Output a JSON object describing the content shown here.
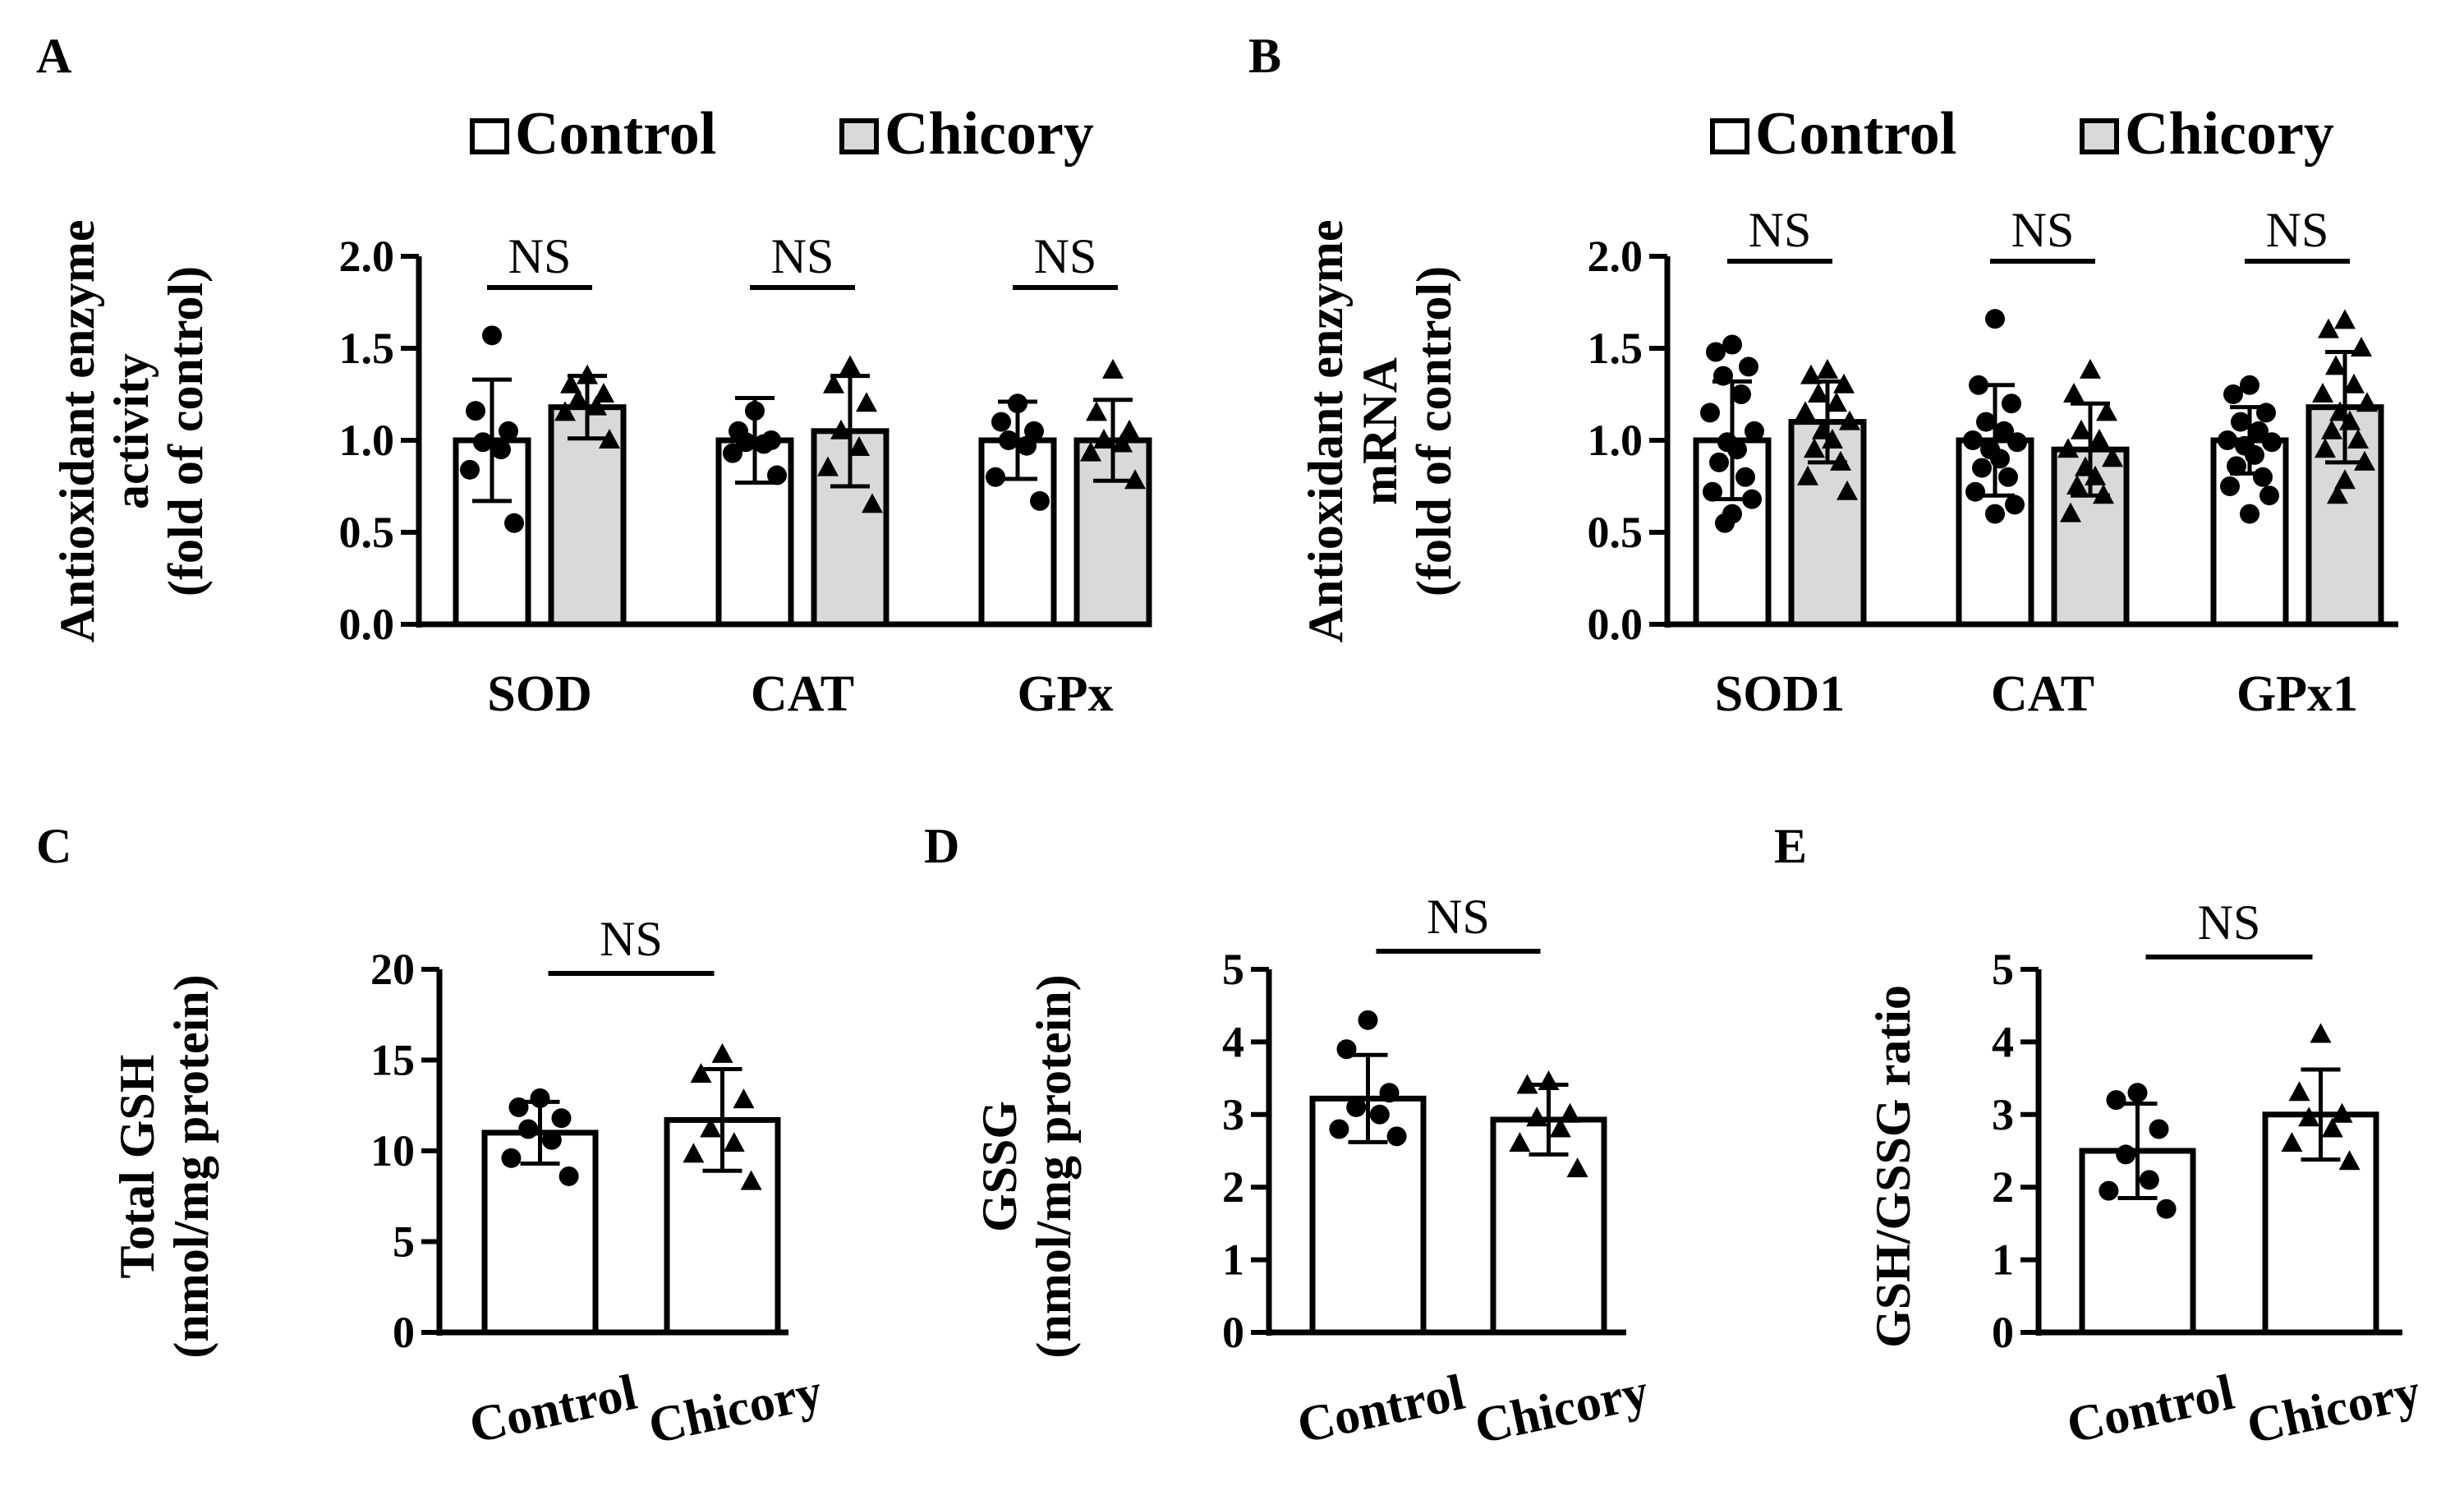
{
  "chart_data": [
    {
      "panel": "A",
      "type": "bar",
      "legend": [
        "Control",
        "Chicory"
      ],
      "ylabel": [
        "Antioxidant enzyme",
        "activity",
        "(fold of control)"
      ],
      "ylim": [
        0,
        2.0
      ],
      "yticks": [
        "0.0",
        "0.5",
        "1.0",
        "1.5",
        "2.0"
      ],
      "categories": [
        "SOD",
        "CAT",
        "GPx"
      ],
      "series": [
        {
          "name": "Control",
          "values": [
            1.0,
            1.0,
            1.0
          ],
          "sd": [
            0.33,
            0.23,
            0.21
          ],
          "points": [
            [
              1.57,
              1.16,
              1.05,
              0.99,
              0.95,
              0.84,
              0.55
            ],
            [
              1.16,
              1.05,
              1.0,
              0.99,
              0.98,
              0.93,
              0.81
            ],
            [
              1.2,
              1.1,
              1.05,
              1.0,
              0.97,
              0.8,
              0.67
            ]
          ]
        },
        {
          "name": "Chicory",
          "values": [
            1.18,
            1.05,
            1.0
          ],
          "sd": [
            0.17,
            0.3,
            0.22
          ],
          "points": [
            [
              1.35,
              1.3,
              1.25,
              1.22,
              1.18,
              1.15,
              1.0
            ],
            [
              1.4,
              1.3,
              1.2,
              1.05,
              0.96,
              0.85,
              0.65
            ],
            [
              1.38,
              1.15,
              1.05,
              1.0,
              0.98,
              0.93,
              0.78
            ]
          ]
        }
      ],
      "significance": [
        "NS",
        "NS",
        "NS"
      ]
    },
    {
      "panel": "B",
      "type": "bar",
      "legend": [
        "Control",
        "Chicory"
      ],
      "ylabel": [
        "Antioxidant enzyme",
        "mRNA",
        "(fold of control)"
      ],
      "ylim": [
        0,
        2.0
      ],
      "yticks": [
        "0.0",
        "0.5",
        "1.0",
        "1.5",
        "2.0"
      ],
      "categories": [
        "SOD1",
        "CAT",
        "GPx1"
      ],
      "series": [
        {
          "name": "Control",
          "values": [
            1.0,
            1.0,
            1.0
          ],
          "sd": [
            0.32,
            0.3,
            0.18
          ],
          "points": [
            [
              1.52,
              1.48,
              1.4,
              1.35,
              1.25,
              1.15,
              1.05,
              0.99,
              0.95,
              0.88,
              0.8,
              0.72,
              0.68,
              0.6,
              0.55
            ],
            [
              1.66,
              1.3,
              1.2,
              1.1,
              1.05,
              1.0,
              0.99,
              0.95,
              0.9,
              0.85,
              0.8,
              0.72,
              0.65,
              0.6
            ],
            [
              1.3,
              1.25,
              1.15,
              1.1,
              1.05,
              1.0,
              0.99,
              0.97,
              0.92,
              0.86,
              0.8,
              0.75,
              0.7,
              0.6
            ]
          ]
        },
        {
          "name": "Chicory",
          "values": [
            1.1,
            0.95,
            1.18
          ],
          "sd": [
            0.22,
            0.25,
            0.3
          ],
          "points": [
            [
              1.38,
              1.35,
              1.3,
              1.25,
              1.2,
              1.15,
              1.1,
              1.05,
              1.0,
              0.95,
              0.88,
              0.8,
              0.72
            ],
            [
              1.38,
              1.25,
              1.15,
              1.05,
              1.0,
              0.95,
              0.9,
              0.85,
              0.8,
              0.75,
              0.7,
              0.6
            ],
            [
              1.65,
              1.6,
              1.5,
              1.4,
              1.3,
              1.25,
              1.2,
              1.15,
              1.1,
              1.05,
              1.0,
              0.95,
              0.88,
              0.78,
              0.7
            ]
          ]
        }
      ],
      "significance": [
        "NS",
        "NS",
        "NS"
      ]
    },
    {
      "panel": "C",
      "type": "bar",
      "ylabel": [
        "Total GSH",
        "(nmol/mg protein)"
      ],
      "ylim": [
        0,
        20
      ],
      "yticks": [
        "0",
        "5",
        "10",
        "15",
        "20"
      ],
      "categories": [
        "Control",
        "Chicory"
      ],
      "values": [
        11.0,
        11.7
      ],
      "sd": [
        1.7,
        2.8
      ],
      "points": [
        [
          12.9,
          12.4,
          11.8,
          11.2,
          10.6,
          9.6,
          8.6
        ],
        [
          15.3,
          14.2,
          12.8,
          11.2,
          10.4,
          9.8,
          8.3
        ]
      ],
      "significance": "NS"
    },
    {
      "panel": "D",
      "type": "bar",
      "ylabel": [
        "GSSG",
        "(nmol/mg protein)"
      ],
      "ylim": [
        0,
        5
      ],
      "yticks": [
        "0",
        "1",
        "2",
        "3",
        "4",
        "5"
      ],
      "categories": [
        "Control",
        "Chicory"
      ],
      "values": [
        3.22,
        2.93
      ],
      "sd": [
        0.6,
        0.48
      ],
      "points": [
        [
          4.3,
          3.9,
          3.3,
          3.1,
          3.0,
          2.8,
          2.7
        ],
        [
          3.45,
          3.4,
          3.0,
          2.95,
          2.8,
          2.6,
          2.25
        ]
      ],
      "significance": "NS"
    },
    {
      "panel": "E",
      "type": "bar",
      "ylabel": [
        "GSH/GSSG ratio"
      ],
      "ylim": [
        0,
        5
      ],
      "yticks": [
        "0",
        "1",
        "2",
        "3",
        "4",
        "5"
      ],
      "categories": [
        "Control",
        "Chicory"
      ],
      "values": [
        2.5,
        3.0
      ],
      "sd": [
        0.65,
        0.62
      ],
      "points": [
        [
          3.3,
          3.2,
          2.8,
          2.45,
          2.1,
          1.95,
          1.7
        ],
        [
          4.1,
          3.3,
          3.0,
          2.95,
          2.8,
          2.6,
          2.35
        ]
      ],
      "significance": "NS"
    }
  ]
}
